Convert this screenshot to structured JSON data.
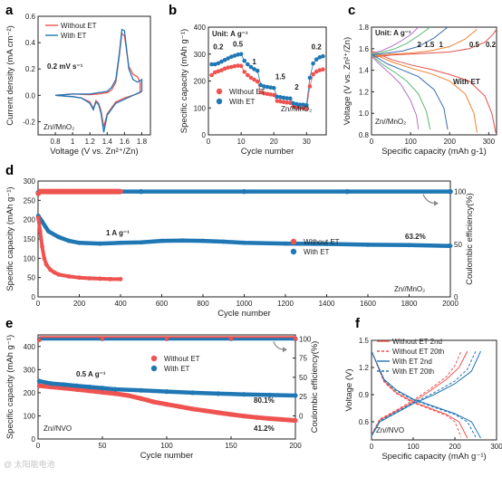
{
  "colors": {
    "without": "#ef5350",
    "with": "#1f77b4",
    "arrow": "#888888",
    "frame": "#222222"
  },
  "panels": {
    "a": {
      "letter": "a",
      "xlabel": "Voltage (V vs. Zn²⁺/Zn)",
      "ylabel": "Current density (mA cm⁻²)",
      "legend": [
        "Without ET",
        "With ET"
      ],
      "annotations": [
        "0.2 mV s⁻¹",
        "Zn//MnO₂"
      ]
    },
    "b": {
      "letter": "b",
      "xlabel": "Cycle number",
      "ylabel": "Specific capacity (mAh g⁻¹)",
      "legend": [
        "Without ET",
        "With ET"
      ],
      "annotations": [
        "Unit: A g⁻¹",
        "Zn//MnO₂"
      ],
      "rate_labels": [
        "0.2",
        "0.5",
        "1",
        "1.5",
        "2",
        "0.2"
      ]
    },
    "c": {
      "letter": "c",
      "xlabel": "Specific capacity (mAh g-1)",
      "ylabel": "Voltage (V vs. Zn²⁺/Zn)",
      "annotations": [
        "Unit: A g⁻¹",
        "With ET",
        "Zn//MnO₂"
      ],
      "rate_labels": [
        "2",
        "1.5",
        "1",
        "0.5",
        "0.2"
      ]
    },
    "d": {
      "letter": "d",
      "xlabel": "Cycle number",
      "ylabel": "Specific capacity (mAh g⁻¹)",
      "ylabel_right": "Coulombic efficiency(%)",
      "legend": [
        "Without ET",
        "With ET"
      ],
      "annotations": [
        "1 A g⁻¹",
        "63.2%",
        "Zn//MnO₂"
      ]
    },
    "e": {
      "letter": "e",
      "xlabel": "Cycle number",
      "ylabel": "Specific capacity (mAh g⁻¹)",
      "ylabel_right": "Coulombic efficiency(%)",
      "legend": [
        "Without ET",
        "With ET"
      ],
      "annotations": [
        "0.5 A g⁻¹",
        "80.1%",
        "41.2%",
        "Zn//NVO"
      ]
    },
    "f": {
      "letter": "f",
      "xlabel": "Specific capacity (mAh g⁻¹)",
      "ylabel": "Voltage (V)",
      "legend": [
        "Without ET 2nd",
        "Without ET 20th",
        "With ET 2nd",
        "With ET 20th"
      ],
      "annotations": [
        "Zn//NVO"
      ]
    }
  },
  "watermark": "@ 太阳能电池",
  "chart_data": [
    {
      "panel": "a",
      "type": "line",
      "xlim": [
        0.6,
        1.9
      ],
      "ylim": [
        -0.3,
        0.6
      ],
      "xticks": [
        0.8,
        1.0,
        1.2,
        1.4,
        1.6,
        1.8
      ],
      "yticks": [
        -0.2,
        0.0,
        0.2,
        0.4,
        0.6
      ],
      "series": [
        {
          "name": "Without ET",
          "x": [
            0.8,
            1.0,
            1.1,
            1.2,
            1.24,
            1.27,
            1.3,
            1.33,
            1.36,
            1.4,
            1.5,
            1.6,
            1.7,
            1.78,
            1.78,
            1.75,
            1.7,
            1.65,
            1.6,
            1.57,
            1.54,
            1.5,
            1.45,
            1.4,
            1.3,
            1.2,
            1.0,
            0.8
          ],
          "y": [
            0.0,
            -0.01,
            -0.02,
            -0.05,
            -0.1,
            -0.04,
            -0.06,
            -0.12,
            -0.24,
            -0.14,
            -0.05,
            -0.02,
            0.0,
            0.02,
            0.1,
            0.14,
            0.16,
            0.22,
            0.45,
            0.47,
            0.3,
            0.1,
            0.04,
            0.02,
            0.01,
            0.005,
            0.01,
            0.0
          ]
        },
        {
          "name": "With ET",
          "x": [
            0.8,
            1.0,
            1.1,
            1.2,
            1.24,
            1.27,
            1.3,
            1.33,
            1.36,
            1.4,
            1.5,
            1.6,
            1.7,
            1.8,
            1.8,
            1.75,
            1.7,
            1.65,
            1.6,
            1.57,
            1.54,
            1.5,
            1.45,
            1.4,
            1.3,
            1.2,
            1.0,
            0.8
          ],
          "y": [
            0.0,
            -0.01,
            -0.02,
            -0.06,
            -0.11,
            -0.05,
            -0.07,
            -0.14,
            -0.28,
            -0.15,
            -0.06,
            -0.03,
            0.0,
            0.03,
            0.12,
            0.1,
            0.12,
            0.2,
            0.49,
            0.5,
            0.32,
            0.12,
            0.06,
            0.03,
            0.02,
            0.01,
            0.01,
            0.0
          ]
        }
      ]
    },
    {
      "panel": "b",
      "type": "scatter",
      "xlim": [
        0,
        36
      ],
      "ylim": [
        0,
        400
      ],
      "xticks": [
        0,
        10,
        20,
        30
      ],
      "yticks": [
        0,
        100,
        200,
        300,
        400
      ],
      "series": [
        {
          "name": "Without ET",
          "x": [
            1,
            2,
            3,
            4,
            5,
            6,
            7,
            8,
            9,
            10,
            11,
            12,
            13,
            14,
            15,
            16,
            17,
            18,
            19,
            20,
            21,
            22,
            23,
            24,
            25,
            26,
            27,
            28,
            29,
            30,
            31,
            32,
            33,
            34,
            35
          ],
          "y": [
            222,
            232,
            236,
            240,
            246,
            250,
            252,
            255,
            257,
            256,
            234,
            222,
            212,
            205,
            198,
            158,
            154,
            152,
            150,
            148,
            126,
            124,
            122,
            120,
            119,
            104,
            102,
            100,
            100,
            98,
            180,
            225,
            235,
            240,
            243
          ]
        },
        {
          "name": "With ET",
          "x": [
            1,
            2,
            3,
            4,
            5,
            6,
            7,
            8,
            9,
            10,
            11,
            12,
            13,
            14,
            15,
            16,
            17,
            18,
            19,
            20,
            21,
            22,
            23,
            24,
            25,
            26,
            27,
            28,
            29,
            30,
            31,
            32,
            33,
            34,
            35
          ],
          "y": [
            262,
            262,
            266,
            272,
            278,
            284,
            290,
            294,
            298,
            300,
            275,
            262,
            252,
            244,
            238,
            185,
            180,
            178,
            176,
            174,
            142,
            140,
            138,
            136,
            135,
            117,
            114,
            112,
            112,
            110,
            212,
            265,
            280,
            288,
            292
          ]
        }
      ]
    },
    {
      "panel": "c",
      "type": "line",
      "xlim": [
        0,
        320
      ],
      "ylim": [
        0.8,
        1.8
      ],
      "xticks": [
        0,
        100,
        200,
        300
      ],
      "yticks": [
        0.8,
        1.0,
        1.2,
        1.4,
        1.6,
        1.8
      ],
      "series": [
        {
          "name": "0.2",
          "discharge_x": [
            0,
            50,
            100,
            150,
            200,
            250,
            290,
            308,
            318
          ],
          "discharge_y": [
            1.58,
            1.5,
            1.45,
            1.41,
            1.36,
            1.3,
            1.16,
            1.0,
            0.82
          ],
          "charge_x": [
            0,
            50,
            100,
            150,
            200,
            250,
            290,
            310,
            320
          ],
          "charge_y": [
            1.52,
            1.54,
            1.55,
            1.56,
            1.57,
            1.6,
            1.66,
            1.73,
            1.78
          ]
        },
        {
          "name": "0.5",
          "discharge_x": [
            0,
            50,
            100,
            150,
            200,
            240,
            262,
            270
          ],
          "discharge_y": [
            1.56,
            1.48,
            1.42,
            1.37,
            1.3,
            1.18,
            1.0,
            0.82
          ],
          "charge_x": [
            0,
            50,
            100,
            150,
            200,
            240,
            270
          ],
          "charge_y": [
            1.53,
            1.55,
            1.56,
            1.58,
            1.62,
            1.69,
            1.78
          ]
        },
        {
          "name": "1",
          "discharge_x": [
            0,
            40,
            80,
            120,
            160,
            185,
            195
          ],
          "discharge_y": [
            1.55,
            1.46,
            1.4,
            1.34,
            1.22,
            1.05,
            0.85
          ],
          "charge_x": [
            0,
            40,
            80,
            120,
            160,
            195
          ],
          "charge_y": [
            1.54,
            1.56,
            1.58,
            1.62,
            1.7,
            1.8
          ]
        },
        {
          "name": "1.5",
          "discharge_x": [
            0,
            30,
            60,
            90,
            120,
            140,
            150
          ],
          "discharge_y": [
            1.54,
            1.45,
            1.38,
            1.3,
            1.18,
            1.02,
            0.85
          ],
          "charge_x": [
            0,
            30,
            60,
            90,
            120,
            150
          ],
          "charge_y": [
            1.55,
            1.57,
            1.6,
            1.65,
            1.72,
            1.8
          ]
        },
        {
          "name": "2",
          "discharge_x": [
            0,
            25,
            50,
            75,
            100,
            115,
            120
          ],
          "discharge_y": [
            1.53,
            1.44,
            1.36,
            1.27,
            1.12,
            0.98,
            0.85
          ],
          "charge_x": [
            0,
            25,
            50,
            75,
            100,
            120
          ],
          "charge_y": [
            1.56,
            1.58,
            1.62,
            1.67,
            1.73,
            1.8
          ]
        }
      ]
    },
    {
      "panel": "d",
      "type": "scatter",
      "xlim": [
        0,
        2000
      ],
      "ylim": [
        0,
        300
      ],
      "ylim_right": [
        0,
        110
      ],
      "xticks": [
        0,
        200,
        400,
        600,
        800,
        1000,
        1200,
        1400,
        1600,
        1800,
        2000
      ],
      "yticks": [
        0,
        50,
        100,
        150,
        200,
        250,
        300
      ],
      "yticks_right": [
        0,
        50,
        100
      ],
      "series": [
        {
          "name": "Without ET",
          "axis": "left",
          "x": [
            1,
            10,
            20,
            30,
            40,
            60,
            80,
            100,
            150,
            200,
            250,
            300,
            350,
            400
          ],
          "y": [
            205,
            170,
            130,
            100,
            84,
            70,
            63,
            58,
            53,
            50,
            48,
            47,
            46,
            46
          ]
        },
        {
          "name": "With ET",
          "axis": "left",
          "x": [
            1,
            20,
            50,
            100,
            150,
            200,
            300,
            400,
            500,
            600,
            700,
            800,
            900,
            1000,
            1200,
            1400,
            1600,
            1800,
            2000
          ],
          "y": [
            210,
            195,
            170,
            155,
            145,
            140,
            138,
            140,
            141,
            145,
            146,
            145,
            143,
            140,
            138,
            137,
            135,
            134,
            132
          ]
        },
        {
          "name": "Without ET CE",
          "axis": "right",
          "x": [
            1,
            100,
            200,
            300,
            400
          ],
          "y": [
            98,
            100,
            100,
            100,
            100
          ]
        },
        {
          "name": "With ET CE",
          "axis": "right",
          "x": [
            1,
            500,
            1000,
            1500,
            2000
          ],
          "y": [
            99,
            100,
            100,
            100,
            100
          ]
        }
      ]
    },
    {
      "panel": "e",
      "type": "scatter",
      "xlim": [
        0,
        200
      ],
      "ylim": [
        0,
        450
      ],
      "ylim_right": [
        -30,
        105
      ],
      "xticks": [
        0,
        50,
        100,
        150,
        200
      ],
      "yticks": [
        0,
        100,
        200,
        300,
        400
      ],
      "yticks_right": [
        0,
        25,
        50,
        75,
        100
      ],
      "series": [
        {
          "name": "Without ET",
          "axis": "left",
          "x": [
            1,
            10,
            20,
            30,
            40,
            50,
            60,
            70,
            80,
            90,
            100,
            110,
            120,
            130,
            140,
            150,
            160,
            170,
            180,
            190,
            200
          ],
          "y": [
            230,
            225,
            220,
            214,
            208,
            202,
            196,
            188,
            175,
            160,
            150,
            140,
            130,
            122,
            114,
            106,
            99,
            93,
            88,
            84,
            80
          ]
        },
        {
          "name": "With ET",
          "axis": "left",
          "x": [
            1,
            10,
            20,
            30,
            40,
            50,
            60,
            80,
            100,
            120,
            140,
            160,
            180,
            200
          ],
          "y": [
            250,
            240,
            235,
            230,
            225,
            220,
            215,
            210,
            205,
            200,
            196,
            193,
            190,
            188
          ]
        },
        {
          "name": "Without ET CE",
          "axis": "right",
          "x": [
            1,
            50,
            100,
            150,
            200
          ],
          "y": [
            98,
            100,
            100,
            100,
            100
          ]
        },
        {
          "name": "With ET CE",
          "axis": "right",
          "x": [
            1,
            50,
            100,
            150,
            200
          ],
          "y": [
            99,
            100,
            100,
            100,
            100
          ]
        }
      ]
    },
    {
      "panel": "f",
      "type": "line",
      "xlim": [
        0,
        300
      ],
      "ylim": [
        0.4,
        1.5
      ],
      "xticks": [
        0,
        100,
        200,
        300
      ],
      "yticks": [
        0.6,
        0.9,
        1.2,
        1.5
      ],
      "series": [
        {
          "name": "Without ET 2nd",
          "discharge_x": [
            0,
            30,
            60,
            100,
            140,
            180,
            210,
            230
          ],
          "discharge_y": [
            1.38,
            1.05,
            0.92,
            0.82,
            0.75,
            0.68,
            0.6,
            0.42
          ],
          "charge_x": [
            0,
            20,
            60,
            100,
            140,
            180,
            210,
            230
          ],
          "charge_y": [
            0.45,
            0.62,
            0.72,
            0.82,
            0.94,
            1.07,
            1.2,
            1.38
          ]
        },
        {
          "name": "Without ET 20th",
          "discharge_x": [
            0,
            30,
            60,
            100,
            140,
            180,
            200,
            215
          ],
          "discharge_y": [
            1.38,
            1.04,
            0.91,
            0.81,
            0.74,
            0.67,
            0.6,
            0.43
          ],
          "charge_x": [
            0,
            20,
            60,
            100,
            140,
            180,
            200,
            215
          ],
          "charge_y": [
            0.46,
            0.63,
            0.73,
            0.84,
            0.96,
            1.1,
            1.22,
            1.38
          ]
        },
        {
          "name": "With ET 2nd",
          "discharge_x": [
            0,
            30,
            60,
            100,
            150,
            200,
            240,
            262
          ],
          "discharge_y": [
            1.38,
            1.07,
            0.95,
            0.85,
            0.77,
            0.69,
            0.6,
            0.42
          ],
          "charge_x": [
            0,
            20,
            60,
            100,
            150,
            200,
            240,
            262
          ],
          "charge_y": [
            0.44,
            0.6,
            0.7,
            0.8,
            0.9,
            1.02,
            1.16,
            1.38
          ]
        },
        {
          "name": "With ET 20th",
          "discharge_x": [
            0,
            30,
            60,
            100,
            150,
            200,
            230,
            250
          ],
          "discharge_y": [
            1.38,
            1.06,
            0.94,
            0.84,
            0.76,
            0.68,
            0.6,
            0.43
          ],
          "charge_x": [
            0,
            20,
            60,
            100,
            150,
            200,
            230,
            250
          ],
          "charge_y": [
            0.45,
            0.61,
            0.71,
            0.81,
            0.92,
            1.05,
            1.18,
            1.38
          ]
        }
      ]
    }
  ]
}
